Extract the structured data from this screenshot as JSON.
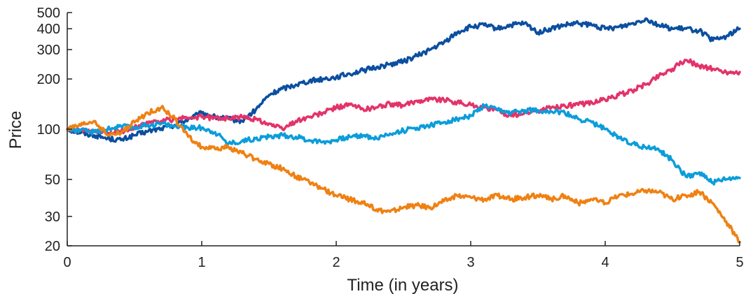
{
  "chart_data": {
    "type": "line",
    "xlabel": "Time (in years)",
    "ylabel": "Price",
    "xlim": [
      0,
      5
    ],
    "ylim": [
      20,
      500
    ],
    "yscale": "log",
    "xticks": [
      0,
      1,
      2,
      3,
      4,
      5
    ],
    "yticks": [
      20,
      30,
      50,
      100,
      200,
      300,
      400,
      500
    ],
    "grid": false,
    "legend": "none",
    "series": [
      {
        "color": "#0b4fa0",
        "x": [
          0,
          0.1,
          0.2,
          0.3,
          0.4,
          0.5,
          0.6,
          0.7,
          0.8,
          0.9,
          1.0,
          1.1,
          1.2,
          1.3,
          1.4,
          1.5,
          1.6,
          1.7,
          1.8,
          1.9,
          2.0,
          2.1,
          2.2,
          2.3,
          2.4,
          2.5,
          2.6,
          2.7,
          2.8,
          2.9,
          3.0,
          3.1,
          3.2,
          3.3,
          3.4,
          3.5,
          3.6,
          3.7,
          3.8,
          3.9,
          4.0,
          4.1,
          4.2,
          4.3,
          4.4,
          4.5,
          4.6,
          4.7,
          4.8,
          4.9,
          5.0
        ],
        "values": [
          100,
          95,
          92,
          88,
          86,
          92,
          97,
          101,
          106,
          115,
          125,
          118,
          115,
          112,
          130,
          160,
          175,
          185,
          195,
          200,
          205,
          215,
          225,
          235,
          245,
          255,
          275,
          300,
          330,
          380,
          410,
          420,
          400,
          420,
          430,
          380,
          400,
          420,
          430,
          420,
          400,
          410,
          430,
          460,
          420,
          400,
          400,
          390,
          340,
          360,
          400
        ]
      },
      {
        "color": "#e3336a",
        "x": [
          0,
          0.1,
          0.2,
          0.3,
          0.4,
          0.5,
          0.6,
          0.7,
          0.8,
          0.9,
          1.0,
          1.1,
          1.2,
          1.3,
          1.4,
          1.5,
          1.6,
          1.7,
          1.8,
          1.9,
          2.0,
          2.1,
          2.2,
          2.3,
          2.4,
          2.5,
          2.6,
          2.7,
          2.8,
          2.9,
          3.0,
          3.1,
          3.2,
          3.3,
          3.4,
          3.5,
          3.6,
          3.7,
          3.8,
          3.9,
          4.0,
          4.1,
          4.2,
          4.3,
          4.4,
          4.5,
          4.6,
          4.7,
          4.8,
          4.9,
          5.0
        ],
        "values": [
          100,
          98,
          96,
          95,
          97,
          103,
          108,
          112,
          115,
          117,
          118,
          117,
          116,
          118,
          115,
          108,
          100,
          112,
          118,
          125,
          135,
          140,
          132,
          135,
          142,
          138,
          148,
          152,
          150,
          145,
          140,
          135,
          130,
          120,
          125,
          128,
          135,
          138,
          140,
          145,
          150,
          160,
          170,
          185,
          210,
          230,
          260,
          240,
          230,
          220,
          220
        ]
      },
      {
        "color": "#0b9ddb",
        "x": [
          0,
          0.1,
          0.2,
          0.3,
          0.4,
          0.5,
          0.6,
          0.7,
          0.8,
          0.9,
          1.0,
          1.1,
          1.2,
          1.3,
          1.4,
          1.5,
          1.6,
          1.7,
          1.8,
          1.9,
          2.0,
          2.1,
          2.2,
          2.3,
          2.4,
          2.5,
          2.6,
          2.7,
          2.8,
          2.9,
          3.0,
          3.1,
          3.2,
          3.3,
          3.4,
          3.5,
          3.6,
          3.7,
          3.8,
          3.9,
          4.0,
          4.1,
          4.2,
          4.3,
          4.4,
          4.5,
          4.6,
          4.7,
          4.8,
          4.9,
          5.0
        ],
        "values": [
          100,
          98,
          96,
          100,
          104,
          102,
          106,
          108,
          104,
          102,
          102,
          96,
          82,
          85,
          88,
          90,
          92,
          90,
          86,
          84,
          86,
          90,
          92,
          88,
          94,
          98,
          102,
          106,
          110,
          115,
          120,
          138,
          130,
          125,
          130,
          130,
          128,
          125,
          115,
          110,
          100,
          90,
          82,
          78,
          75,
          65,
          52,
          55,
          48,
          50,
          51
        ]
      },
      {
        "color": "#ef8112",
        "x": [
          0,
          0.1,
          0.2,
          0.3,
          0.4,
          0.5,
          0.6,
          0.7,
          0.8,
          0.9,
          1.0,
          1.1,
          1.2,
          1.3,
          1.4,
          1.5,
          1.6,
          1.7,
          1.8,
          1.9,
          2.0,
          2.1,
          2.2,
          2.3,
          2.4,
          2.5,
          2.6,
          2.7,
          2.8,
          2.9,
          3.0,
          3.1,
          3.2,
          3.3,
          3.4,
          3.5,
          3.6,
          3.7,
          3.8,
          3.9,
          4.0,
          4.1,
          4.2,
          4.3,
          4.4,
          4.5,
          4.6,
          4.7,
          4.8,
          4.9,
          5.0
        ],
        "values": [
          100,
          105,
          112,
          92,
          95,
          110,
          125,
          135,
          115,
          90,
          78,
          76,
          78,
          72,
          66,
          62,
          58,
          52,
          48,
          44,
          40,
          38,
          36,
          33,
          32,
          34,
          35,
          34,
          37,
          40,
          39,
          38,
          40,
          38,
          39,
          40,
          38,
          40,
          36,
          38,
          36,
          40,
          41,
          43,
          42,
          38,
          40,
          42,
          36,
          28,
          21
        ]
      }
    ]
  }
}
